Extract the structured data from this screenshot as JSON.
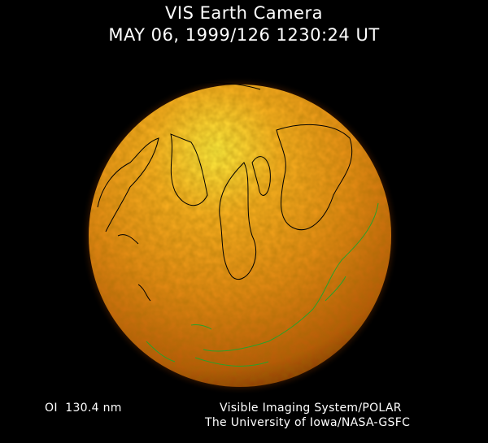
{
  "header": {
    "title": "VIS Earth Camera",
    "timestamp": "MAY 06, 1999/126 1230:24 UT"
  },
  "footer": {
    "wavelength": "OI  130.4 nm",
    "credit_line1": "Visible Imaging System/POLAR",
    "credit_line2": "The University of Iowa/NASA-GSFC"
  },
  "colors": {
    "background": "#000000",
    "globe_bright": "#ffe030",
    "globe_mid": "#e08a10",
    "globe_dark": "#8a3a00",
    "coastline_day": "#000000",
    "coastline_night": "#2aa02a"
  }
}
